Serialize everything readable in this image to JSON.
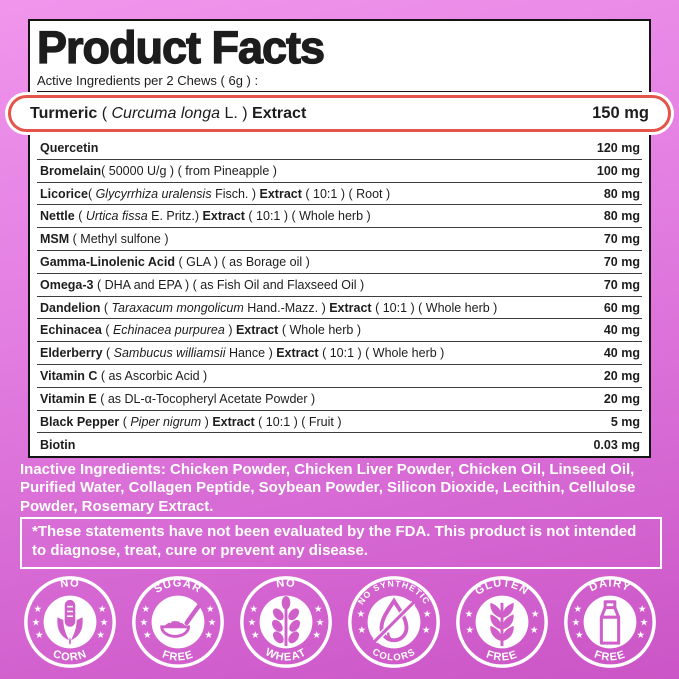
{
  "colors": {
    "bg_top": "#f095ec",
    "bg_mid": "#e27de1",
    "bg_bottom": "#cb55c6",
    "card_border": "#141414",
    "highlight_border": "#e4544b",
    "separator": "#3d3d3d",
    "badge_white": "#ffffff",
    "badge_icon_pink": "#cf5fc9",
    "text_dark": "#1d1d1d",
    "text_white": "#ffffff"
  },
  "header": {
    "title": "Product Facts",
    "serving_line": "Active Ingredients per 2 Chews ( 6g ) :"
  },
  "highlight_row": {
    "segments": [
      {
        "t": "Turmeric",
        "s": "b"
      },
      {
        "t": " ( ",
        "s": "r"
      },
      {
        "t": "Curcuma longa",
        "s": "i"
      },
      {
        "t": " L. ) ",
        "s": "r"
      },
      {
        "t": "Extract",
        "s": "b"
      }
    ],
    "amount": "150 mg"
  },
  "table": {
    "rows": [
      {
        "segments": [
          {
            "t": "Quercetin",
            "s": "b"
          }
        ],
        "amount": "120 mg"
      },
      {
        "segments": [
          {
            "t": "Bromelain",
            "s": "b"
          },
          {
            "t": "( 50000 U/g ) ( from Pineapple )",
            "s": "r"
          }
        ],
        "amount": "100 mg"
      },
      {
        "segments": [
          {
            "t": "Licorice",
            "s": "b"
          },
          {
            "t": "( ",
            "s": "r"
          },
          {
            "t": "Glycyrrhiza uralensis",
            "s": "i"
          },
          {
            "t": " Fisch. ) ",
            "s": "r"
          },
          {
            "t": "Extract",
            "s": "b"
          },
          {
            "t": " ( 10:1 ) ( Root )",
            "s": "r"
          }
        ],
        "amount": "80 mg"
      },
      {
        "segments": [
          {
            "t": "Nettle",
            "s": "b"
          },
          {
            "t": " ( ",
            "s": "r"
          },
          {
            "t": "Urtica fissa",
            "s": "i"
          },
          {
            "t": " E. Pritz.) ",
            "s": "r"
          },
          {
            "t": "Extract",
            "s": "b"
          },
          {
            "t": " ( 10:1 ) ( Whole herb )",
            "s": "r"
          }
        ],
        "amount": "80 mg"
      },
      {
        "segments": [
          {
            "t": "MSM",
            "s": "b"
          },
          {
            "t": " ( Methyl sulfone )",
            "s": "r"
          }
        ],
        "amount": "70 mg"
      },
      {
        "segments": [
          {
            "t": "Gamma-Linolenic Acid",
            "s": "b"
          },
          {
            "t": " ( GLA ) ( as Borage oil )",
            "s": "r"
          }
        ],
        "amount": "70 mg"
      },
      {
        "segments": [
          {
            "t": "Omega-3",
            "s": "b"
          },
          {
            "t": " ( DHA and EPA ) ( as Fish Oil and Flaxseed Oil )",
            "s": "r"
          }
        ],
        "amount": "70 mg"
      },
      {
        "segments": [
          {
            "t": "Dandelion",
            "s": "b"
          },
          {
            "t": " ( ",
            "s": "r"
          },
          {
            "t": "Taraxacum mongolicum",
            "s": "i"
          },
          {
            "t": " Hand.-Mazz. ) ",
            "s": "r"
          },
          {
            "t": "Extract",
            "s": "b"
          },
          {
            "t": " ( 10:1 ) ( Whole herb )",
            "s": "r"
          }
        ],
        "amount": "60 mg"
      },
      {
        "segments": [
          {
            "t": "Echinacea",
            "s": "b"
          },
          {
            "t": " ( ",
            "s": "r"
          },
          {
            "t": "Echinacea purpurea",
            "s": "i"
          },
          {
            "t": " ) ",
            "s": "r"
          },
          {
            "t": "Extract",
            "s": "b"
          },
          {
            "t": " ( Whole herb )",
            "s": "r"
          }
        ],
        "amount": "40 mg"
      },
      {
        "segments": [
          {
            "t": "Elderberry",
            "s": "b"
          },
          {
            "t": " ( ",
            "s": "r"
          },
          {
            "t": "Sambucus williamsii",
            "s": "i"
          },
          {
            "t": " Hance ) ",
            "s": "r"
          },
          {
            "t": "Extract",
            "s": "b"
          },
          {
            "t": " ( 10:1 ) ( Whole herb )",
            "s": "r"
          }
        ],
        "amount": "40 mg"
      },
      {
        "segments": [
          {
            "t": "Vitamin C",
            "s": "b"
          },
          {
            "t": " ( as Ascorbic Acid )",
            "s": "r"
          }
        ],
        "amount": "20 mg"
      },
      {
        "segments": [
          {
            "t": "Vitamin E",
            "s": "b"
          },
          {
            "t": " ( as DL-α-Tocopheryl Acetate Powder )",
            "s": "r"
          }
        ],
        "amount": "20 mg"
      },
      {
        "segments": [
          {
            "t": "Black Pepper",
            "s": "b"
          },
          {
            "t": " ( ",
            "s": "r"
          },
          {
            "t": "Piper nigrum",
            "s": "i"
          },
          {
            "t": " ) ",
            "s": "r"
          },
          {
            "t": "Extract",
            "s": "b"
          },
          {
            "t": " ( 10:1 ) ( Fruit )",
            "s": "r"
          }
        ],
        "amount": "5 mg"
      },
      {
        "segments": [
          {
            "t": "Biotin",
            "s": "b"
          }
        ],
        "amount": "0.03 mg"
      }
    ]
  },
  "inactive": {
    "text": "Inactive Ingredients: Chicken Powder, Chicken Liver Powder, Chicken Oil, Linseed Oil, Purified Water, Collagen Peptide, Soybean Powder, Silicon Dioxide, Lecithin, Cellulose Powder, Rosemary Extract."
  },
  "disclaimer": {
    "text": "*These statements have not been evaluated by the FDA. This product is not intended to diagnose, treat, cure or prevent any disease."
  },
  "badges": [
    {
      "top": "NO",
      "bottom": "CORN",
      "icon": "corn-icon",
      "stars_per_side": 3
    },
    {
      "top": "SUGAR",
      "bottom": "FREE",
      "icon": "sugar-spoon-icon",
      "stars_per_side": 3
    },
    {
      "top": "NO",
      "bottom": "WHEAT",
      "icon": "wheat-grain-icon",
      "stars_per_side": 3
    },
    {
      "top": "NO SYNTHETIC",
      "bottom": "COLORS",
      "icon": "droplet-slash-icon",
      "stars_per_side": 2
    },
    {
      "top": "GLUTEN",
      "bottom": "FREE",
      "icon": "wheat-ear-icon",
      "stars_per_side": 2
    },
    {
      "top": "DAIRY",
      "bottom": "FREE",
      "icon": "milk-carton-icon",
      "stars_per_side": 3
    }
  ]
}
